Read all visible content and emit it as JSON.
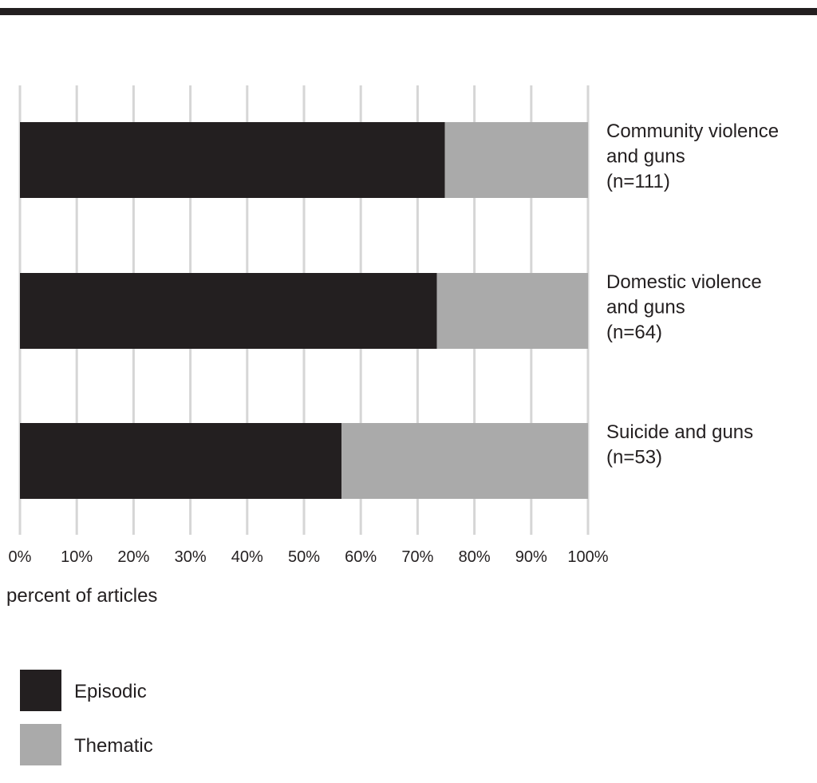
{
  "colors": {
    "episodic": "#231f20",
    "thematic": "#aaaaaa",
    "grid": "#d6d6d6",
    "rule": "#231f20"
  },
  "chart_data": {
    "type": "bar",
    "orientation": "horizontal",
    "stacked": true,
    "xlabel": "percent of articles",
    "xlim": [
      0,
      100
    ],
    "x_ticks": [
      "0%",
      "10%",
      "20%",
      "30%",
      "40%",
      "50%",
      "60%",
      "70%",
      "80%",
      "90%",
      "100%"
    ],
    "grid": true,
    "legend_position": "bottom-left",
    "categories": [
      [
        "Community violence",
        "and guns",
        "(n=111)"
      ],
      [
        "Domestic violence",
        "and guns",
        "(n=64)"
      ],
      [
        "Suicide and guns",
        "(n=53)"
      ]
    ],
    "series": [
      {
        "name": "Episodic",
        "color": "#231f20",
        "values": [
          74.8,
          73.4,
          56.6
        ]
      },
      {
        "name": "Thematic",
        "color": "#aaaaaa",
        "values": [
          25.2,
          26.6,
          43.4
        ]
      }
    ]
  }
}
